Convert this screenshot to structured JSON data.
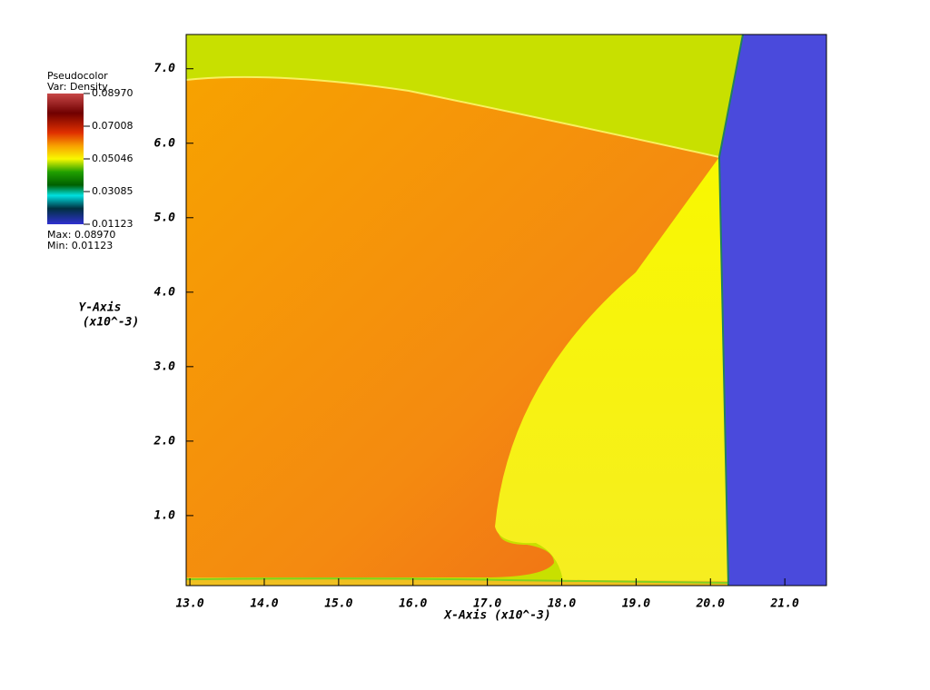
{
  "chart_data": {
    "type": "pseudocolor",
    "xlabel": "X-Axis (x10^-3)",
    "ylabel": "Y-Axis",
    "yunit": "(x10^-3)",
    "xlim": [
      12.95,
      21.56
    ],
    "ylim": [
      0.06,
      7.46
    ],
    "xticks": [
      {
        "value": 13,
        "label": "13.0"
      },
      {
        "value": 14,
        "label": "14.0"
      },
      {
        "value": 15,
        "label": "15.0"
      },
      {
        "value": 16,
        "label": "16.0"
      },
      {
        "value": 17,
        "label": "17.0"
      },
      {
        "value": 18,
        "label": "18.0"
      },
      {
        "value": 19,
        "label": "19.0"
      },
      {
        "value": 20,
        "label": "20.0"
      },
      {
        "value": 21,
        "label": "21.0"
      }
    ],
    "yticks": [
      {
        "value": 1,
        "label": "1.0"
      },
      {
        "value": 2,
        "label": "2.0"
      },
      {
        "value": 3,
        "label": "3.0"
      },
      {
        "value": 4,
        "label": "4.0"
      },
      {
        "value": 5,
        "label": "5.0"
      },
      {
        "value": 6,
        "label": "6.0"
      },
      {
        "value": 7,
        "label": "7.0"
      }
    ],
    "legend": {
      "title": "Pseudocolor",
      "variable": "Var: Density",
      "range": [
        0.01123,
        0.0897
      ],
      "ticks": [
        {
          "value": 0.0897,
          "label": "0.08970"
        },
        {
          "value": 0.07008,
          "label": "0.07008"
        },
        {
          "value": 0.05046,
          "label": "0.05046"
        },
        {
          "value": 0.03085,
          "label": "0.03085"
        },
        {
          "value": 0.01123,
          "label": "0.01123"
        }
      ],
      "max_label": "Max: 0.08970",
      "min_label": "Min: 0.01123"
    }
  }
}
